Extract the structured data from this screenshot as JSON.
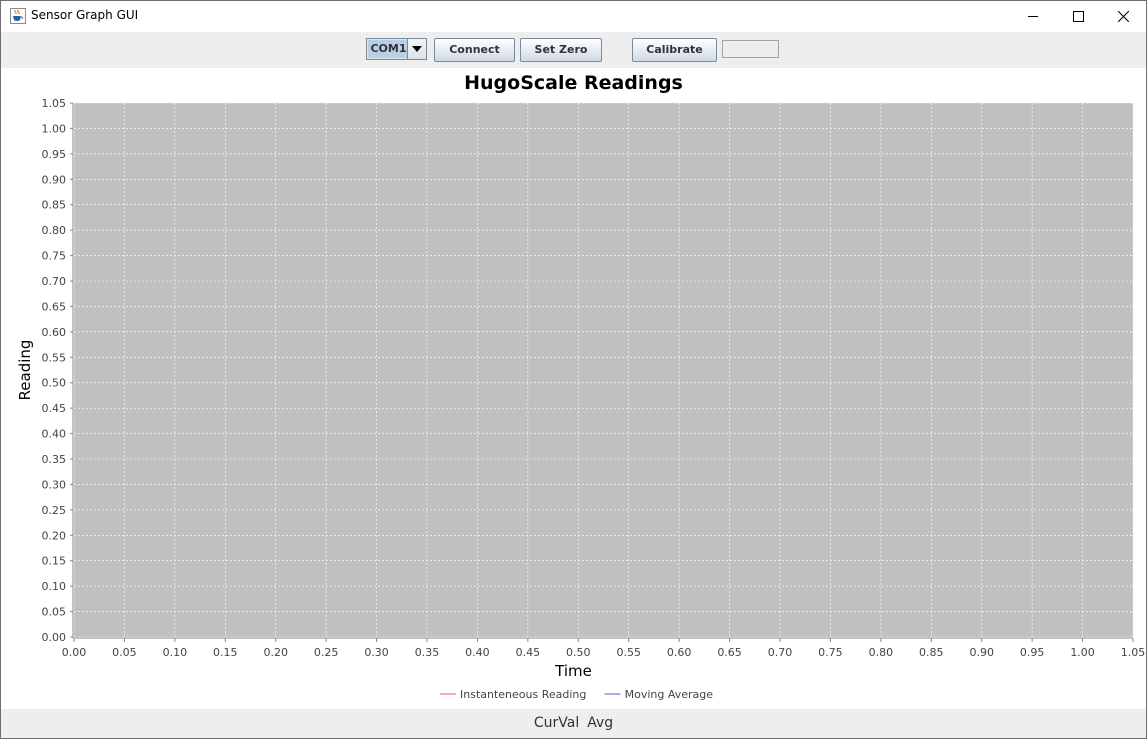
{
  "window": {
    "title": "Sensor Graph GUI",
    "icon": "java-cup-icon",
    "controls": [
      "minimize-icon",
      "maximize-icon",
      "close-icon"
    ]
  },
  "toolbar": {
    "port_selected": "COM1",
    "connect_label": "Connect",
    "set_zero_label": "Set Zero",
    "calibrate_label": "Calibrate",
    "calibrate_value": ""
  },
  "chart_data": {
    "type": "line",
    "title": "HugoScale Readings",
    "xlabel": "Time",
    "ylabel": "Reading",
    "xlim": [
      0,
      1.05
    ],
    "ylim": [
      0,
      1.05
    ],
    "xticks": [
      "0.00",
      "0.05",
      "0.10",
      "0.15",
      "0.20",
      "0.25",
      "0.30",
      "0.35",
      "0.40",
      "0.45",
      "0.50",
      "0.55",
      "0.60",
      "0.65",
      "0.70",
      "0.75",
      "0.80",
      "0.85",
      "0.90",
      "0.95",
      "1.00",
      "1.05"
    ],
    "yticks": [
      "0.00",
      "0.05",
      "0.10",
      "0.15",
      "0.20",
      "0.25",
      "0.30",
      "0.35",
      "0.40",
      "0.45",
      "0.50",
      "0.55",
      "0.60",
      "0.65",
      "0.70",
      "0.75",
      "0.80",
      "0.85",
      "0.90",
      "0.95",
      "1.00",
      "1.05"
    ],
    "grid": true,
    "legend_position": "bottom",
    "plot_background": "#c0c0c0",
    "series": [
      {
        "name": "Instanteneous Reading",
        "color": "#ff5555",
        "x": [],
        "y": []
      },
      {
        "name": "Moving Average",
        "color": "#5555ff",
        "x": [],
        "y": []
      }
    ]
  },
  "status": {
    "curval_label": "CurVal",
    "avg_label": "Avg"
  }
}
